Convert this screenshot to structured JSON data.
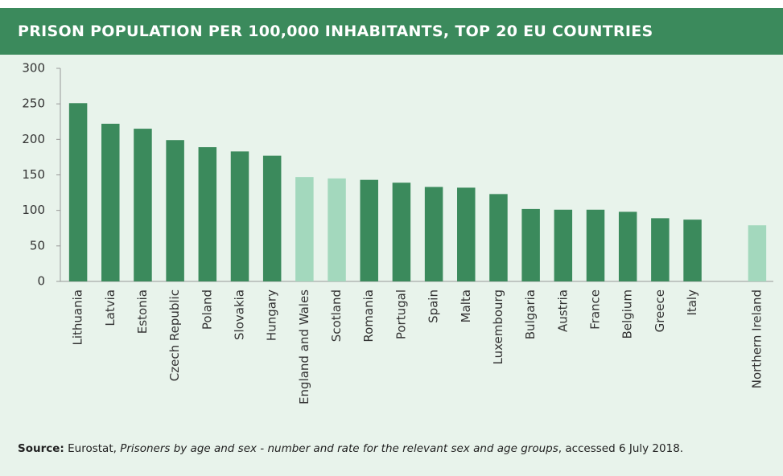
{
  "chart_data": {
    "type": "bar",
    "title": "PRISON POPULATION PER 100,000 INHABITANTS, TOP 20 EU COUNTRIES",
    "categories": [
      "Lithuania",
      "Latvia",
      "Estonia",
      "Czech Republic",
      "Poland",
      "Slovakia",
      "Hungary",
      "England and Wales",
      "Scotland",
      "Romania",
      "Portugal",
      "Spain",
      "Malta",
      "Luxembourg",
      "Bulgaria",
      "Austria",
      "France",
      "Belgium",
      "Greece",
      "Italy",
      null,
      "Northern Ireland"
    ],
    "values": [
      251,
      222,
      215,
      199,
      189,
      183,
      177,
      147,
      145,
      143,
      139,
      133,
      132,
      123,
      102,
      101,
      101,
      98,
      89,
      87,
      null,
      79
    ],
    "colors": [
      "#3b8a5c",
      "#3b8a5c",
      "#3b8a5c",
      "#3b8a5c",
      "#3b8a5c",
      "#3b8a5c",
      "#3b8a5c",
      "#a3d8bd",
      "#a3d8bd",
      "#3b8a5c",
      "#3b8a5c",
      "#3b8a5c",
      "#3b8a5c",
      "#3b8a5c",
      "#3b8a5c",
      "#3b8a5c",
      "#3b8a5c",
      "#3b8a5c",
      "#3b8a5c",
      "#3b8a5c",
      null,
      "#a3d8bd"
    ],
    "ylim": [
      0,
      300
    ],
    "yticks": [
      0,
      50,
      100,
      150,
      200,
      250,
      300
    ],
    "source": [
      "Source:",
      "Eurostat,",
      "Prisoners by age and sex - number and rate for the relevant sex and age groups",
      ", accessed 6 July 2018."
    ]
  }
}
